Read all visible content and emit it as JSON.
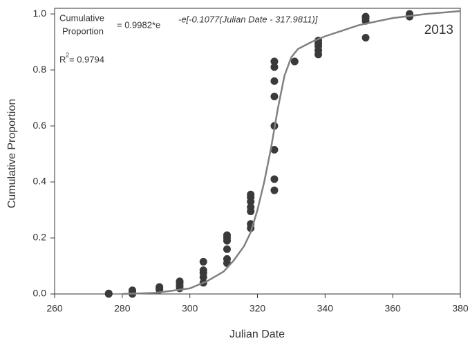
{
  "chart_data": {
    "type": "scatter",
    "x_label": "Julian Date",
    "y_label": "Cumulative Proportion",
    "equation": {
      "lhs_top": "Cumulative",
      "lhs_bottom": "Proportion",
      "rhs": "= 0.9982*e",
      "exponent": "-e[-0.1077(Julian Date - 317.9811)]"
    },
    "r_squared": {
      "base": "R",
      "power": "2",
      "rest": " = 0.9794"
    },
    "year_label": "2013",
    "xlim": [
      260,
      380
    ],
    "xticks": [
      260,
      280,
      300,
      320,
      340,
      360,
      380
    ],
    "ylim": [
      0,
      1.02
    ],
    "yticks": [
      {
        "value": 0,
        "label": "0.0"
      },
      {
        "value": 0.2,
        "label": "0.2"
      },
      {
        "value": 0.4,
        "label": "0.4"
      },
      {
        "value": 0.6,
        "label": "0.6"
      },
      {
        "value": 0.8,
        "label": "0.8"
      },
      {
        "value": 1,
        "label": "1.0"
      }
    ],
    "series": [
      {
        "mode": "markers",
        "color": "#3a3a3a",
        "x": [
          276,
          276,
          283,
          283,
          283,
          291,
          291,
          291,
          297,
          297,
          297,
          297,
          304,
          304,
          304,
          304,
          304,
          311,
          311,
          311,
          311,
          311,
          311,
          318,
          318,
          318,
          318,
          318,
          318,
          318,
          325,
          325,
          325,
          325,
          325,
          325,
          325,
          325,
          331,
          338,
          338,
          338,
          338,
          338,
          352,
          352,
          352,
          352,
          365,
          365,
          365
        ],
        "values": [
          0,
          0.002,
          0,
          0.01,
          0.013,
          0.015,
          0.02,
          0.025,
          0.02,
          0.03,
          0.04,
          0.045,
          0.04,
          0.06,
          0.075,
          0.085,
          0.115,
          0.11,
          0.125,
          0.16,
          0.19,
          0.2,
          0.21,
          0.235,
          0.25,
          0.295,
          0.31,
          0.33,
          0.345,
          0.355,
          0.37,
          0.41,
          0.515,
          0.6,
          0.705,
          0.76,
          0.81,
          0.83,
          0.83,
          0.855,
          0.87,
          0.885,
          0.895,
          0.905,
          0.915,
          0.975,
          0.985,
          0.99,
          0.99,
          0.995,
          1
        ]
      },
      {
        "mode": "line",
        "color": "#808080",
        "x": [
          280,
          290,
          300,
          305,
          310,
          313,
          316,
          318,
          320,
          322,
          324,
          326,
          328,
          330,
          332,
          336,
          340,
          345,
          350,
          360,
          370,
          380
        ],
        "values": [
          0,
          0.004,
          0.02,
          0.045,
          0.08,
          0.12,
          0.17,
          0.22,
          0.3,
          0.4,
          0.52,
          0.66,
          0.78,
          0.845,
          0.875,
          0.9,
          0.92,
          0.94,
          0.96,
          0.985,
          1.0,
          1.01
        ]
      }
    ]
  }
}
